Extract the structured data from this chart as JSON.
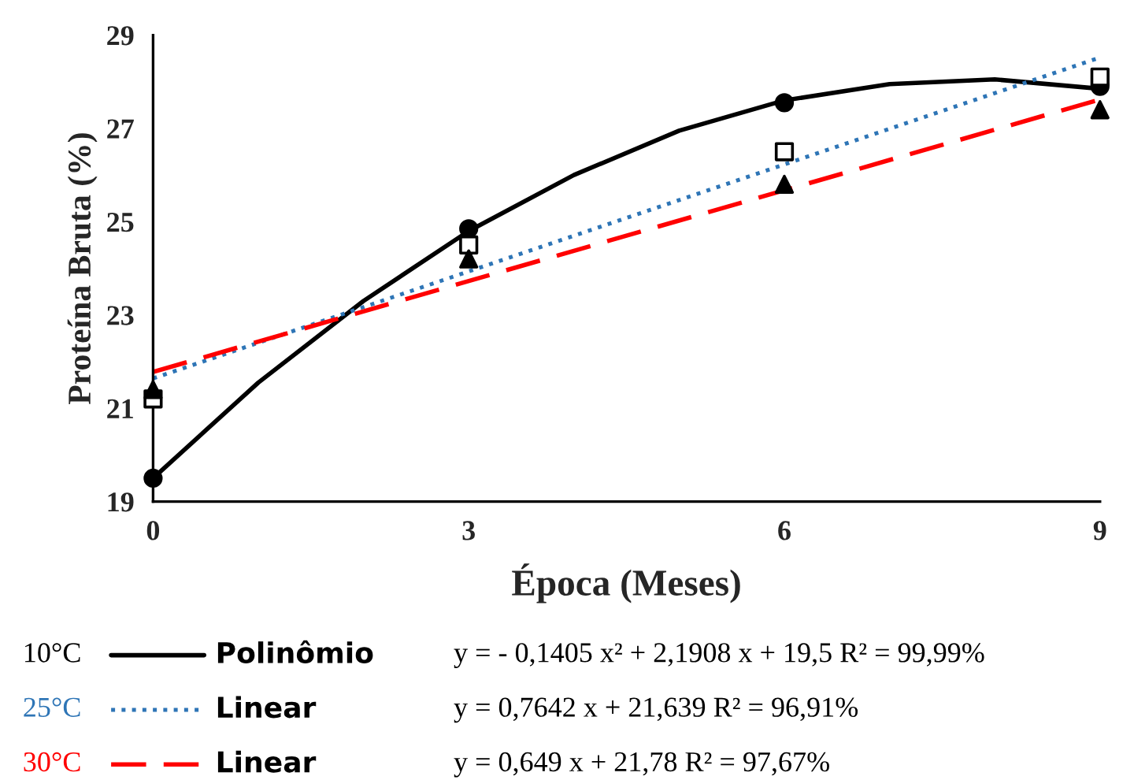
{
  "chart_data": {
    "type": "scatter",
    "xlabel": "Época (Meses)",
    "ylabel": "Proteína Bruta (%)",
    "xlim": [
      0,
      9
    ],
    "xticks": [
      0,
      3,
      6,
      9
    ],
    "ylim": [
      19,
      29
    ],
    "yticks": [
      19,
      21,
      23,
      25,
      27,
      29
    ],
    "grid": false,
    "legend": "bottom",
    "series": [
      {
        "color": "#000000",
        "marker": "circle",
        "x": [
          0,
          3,
          6,
          9
        ],
        "values": [
          19.5,
          24.85,
          27.55,
          27.9
        ]
      },
      {
        "color": "#000000",
        "marker": "square",
        "x": [
          0,
          3,
          6,
          9
        ],
        "values": [
          21.2,
          24.5,
          26.5,
          28.1
        ]
      },
      {
        "color": "#000000",
        "marker": "triangle",
        "x": [
          0,
          3,
          6,
          9
        ],
        "values": [
          21.4,
          24.2,
          25.8,
          27.4
        ]
      },
      {
        "type": "line",
        "name": "Polinômio",
        "color": "#000000",
        "line_style": "solid",
        "marker": "none",
        "x": [
          0,
          1,
          2,
          3,
          4,
          5,
          6,
          7,
          8,
          9
        ],
        "values": [
          19.5,
          21.55,
          23.3,
          24.8,
          26.0,
          26.95,
          27.6,
          27.95,
          28.05,
          27.85
        ]
      },
      {
        "type": "line",
        "name": "Linear",
        "color": "#2e75b6",
        "line_style": "dotted",
        "marker": "none",
        "x": [
          0,
          9
        ],
        "values": [
          21.64,
          28.52
        ]
      },
      {
        "type": "line",
        "name": "Linear",
        "color": "#ff0000",
        "line_style": "dashed",
        "marker": "none",
        "x": [
          0,
          9
        ],
        "values": [
          21.78,
          27.62
        ]
      }
    ],
    "annotations": [
      "10°C",
      "y = - 0,1405 x² + 2,1908 x + 19,5 R² = 99,99%",
      "25°C",
      "y = 0,7642 x + 21,639 R² = 96,91%",
      "30°C",
      "y = 0,649 x + 21,78 R² = 97,67%"
    ]
  }
}
